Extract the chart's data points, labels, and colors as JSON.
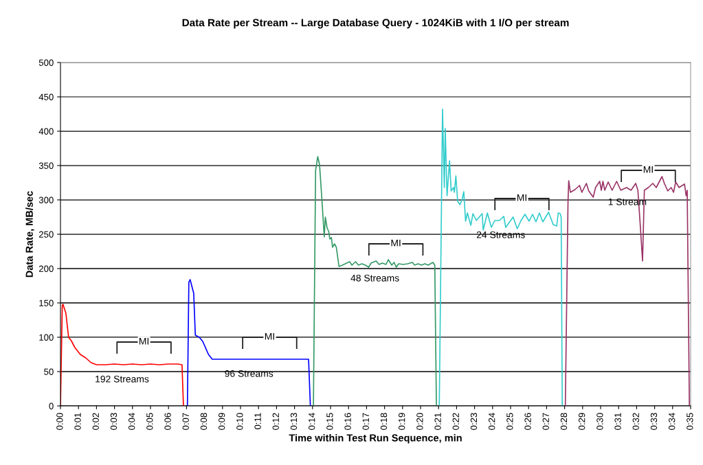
{
  "chart_data": {
    "type": "line",
    "title": "Data Rate per Stream -- Large Database Query - 1024KiB with 1 I/O per stream",
    "xlabel": "Time within Test Run Sequence, min",
    "ylabel": "Data Rate, MB/sec",
    "xlim": [
      0,
      35
    ],
    "ylim": [
      0,
      500
    ],
    "yticks": [
      0,
      50,
      100,
      150,
      200,
      250,
      300,
      350,
      400,
      450,
      500
    ],
    "xticks": [
      {
        "value": 0,
        "label": "0:00"
      },
      {
        "value": 1,
        "label": "0:01"
      },
      {
        "value": 2,
        "label": "0:02"
      },
      {
        "value": 3,
        "label": "0:03"
      },
      {
        "value": 4,
        "label": "0:04"
      },
      {
        "value": 5,
        "label": "0:05"
      },
      {
        "value": 6,
        "label": "0:06"
      },
      {
        "value": 7,
        "label": "0:07"
      },
      {
        "value": 8,
        "label": "0:08"
      },
      {
        "value": 9,
        "label": "0:09"
      },
      {
        "value": 10,
        "label": "0:10"
      },
      {
        "value": 11,
        "label": "0:11"
      },
      {
        "value": 12,
        "label": "0:12"
      },
      {
        "value": 13,
        "label": "0:13"
      },
      {
        "value": 14,
        "label": "0:14"
      },
      {
        "value": 15,
        "label": "0:15"
      },
      {
        "value": 16,
        "label": "0:16"
      },
      {
        "value": 17,
        "label": "0:17"
      },
      {
        "value": 18,
        "label": "0:18"
      },
      {
        "value": 19,
        "label": "0:19"
      },
      {
        "value": 20,
        "label": "0:20"
      },
      {
        "value": 21,
        "label": "0:21"
      },
      {
        "value": 22,
        "label": "0:22"
      },
      {
        "value": 23,
        "label": "0:23"
      },
      {
        "value": 24,
        "label": "0:24"
      },
      {
        "value": 25,
        "label": "0:25"
      },
      {
        "value": 26,
        "label": "0:26"
      },
      {
        "value": 27,
        "label": "0:27"
      },
      {
        "value": 28,
        "label": "0:28"
      },
      {
        "value": 29,
        "label": "0:29"
      },
      {
        "value": 30,
        "label": "0:30"
      },
      {
        "value": 31,
        "label": "0:31"
      },
      {
        "value": 32,
        "label": "0:32"
      },
      {
        "value": 33,
        "label": "0:33"
      },
      {
        "value": 34,
        "label": "0:34"
      },
      {
        "value": 35,
        "label": "0:35"
      }
    ],
    "grid": "y",
    "legend": false,
    "marker": "none",
    "line_style": "solid",
    "series": [
      {
        "name": "192 Streams",
        "color": "#ff0000",
        "x": [
          0,
          0.1,
          0.14,
          0.3,
          0.45,
          0.6,
          0.8,
          1.1,
          1.4,
          1.7,
          2.0,
          2.5,
          3.0,
          3.5,
          4.0,
          4.5,
          5.0,
          5.5,
          6.0,
          6.5,
          6.75,
          6.83
        ],
        "values": [
          0,
          146,
          148,
          135,
          100,
          95,
          85,
          75,
          70,
          63,
          60,
          60,
          61,
          60,
          61,
          60,
          61,
          60,
          61,
          61,
          60,
          0
        ]
      },
      {
        "name": "96 Streams",
        "color": "#0000ff",
        "x": [
          7.05,
          7.13,
          7.2,
          7.4,
          7.49,
          7.71,
          7.9,
          8.22,
          8.43,
          9.0,
          10.0,
          11.0,
          12.0,
          13.0,
          13.78,
          13.88
        ],
        "values": [
          0,
          180,
          184,
          164,
          103,
          100,
          94,
          75,
          68,
          68,
          68,
          68,
          68,
          68,
          68,
          0
        ]
      },
      {
        "name": "48 Streams",
        "color": "#339966",
        "x": [
          14.05,
          14.17,
          14.29,
          14.39,
          14.52,
          14.65,
          14.71,
          14.81,
          14.9,
          14.96,
          15.05,
          15.11,
          15.22,
          15.32,
          15.47,
          15.66,
          16.06,
          16.19,
          16.39,
          16.55,
          16.74,
          16.93,
          17.12,
          17.25,
          17.53,
          17.69,
          17.88,
          18.08,
          18.21,
          18.4,
          18.53,
          18.65,
          18.78,
          19.03,
          19.29,
          19.54,
          19.67,
          19.86,
          20.05,
          20.24,
          20.42,
          20.69,
          20.79,
          20.88
        ],
        "values": [
          0,
          343,
          363,
          351,
          301,
          246,
          275,
          259,
          254,
          243,
          245,
          231,
          236,
          231,
          203,
          205,
          210,
          205,
          210,
          205,
          207,
          205,
          202,
          208,
          211,
          206,
          208,
          206,
          213,
          205,
          209,
          202,
          207,
          206,
          207,
          209,
          205,
          207,
          205,
          207,
          205,
          209,
          205,
          0
        ]
      },
      {
        "name": "24 Streams",
        "color": "#33cccc",
        "x": [
          21.04,
          21.22,
          21.32,
          21.37,
          21.47,
          21.61,
          21.7,
          21.83,
          21.88,
          21.96,
          22.06,
          22.19,
          22.31,
          22.4,
          22.5,
          22.6,
          22.79,
          22.91,
          23.1,
          23.42,
          23.48,
          23.71,
          23.93,
          24.12,
          24.38,
          24.62,
          24.73,
          24.95,
          25.14,
          25.37,
          25.58,
          25.8,
          26.03,
          26.22,
          26.41,
          26.6,
          26.79,
          27.11,
          27.37,
          27.56,
          27.65,
          27.75,
          27.81,
          27.87
        ],
        "values": [
          0,
          432,
          318,
          404,
          306,
          357,
          313,
          318,
          311,
          335,
          298,
          293,
          301,
          312,
          269,
          281,
          263,
          280,
          270,
          280,
          256,
          281,
          260,
          270,
          270,
          276,
          260,
          268,
          275,
          258,
          270,
          279,
          269,
          279,
          268,
          281,
          268,
          282,
          264,
          262,
          281,
          280,
          275,
          0
        ]
      },
      {
        "name": "1 Stream",
        "color": "#993366",
        "x": [
          28.04,
          28.19,
          28.23,
          28.32,
          28.58,
          28.83,
          28.96,
          29.21,
          29.34,
          29.59,
          29.72,
          29.95,
          30.04,
          30.13,
          30.23,
          30.42,
          30.64,
          30.89,
          31.12,
          31.44,
          31.69,
          31.95,
          32.07,
          32.2,
          32.33,
          32.43,
          32.65,
          32.9,
          33.09,
          33.41,
          33.54,
          33.73,
          33.92,
          34.05,
          34.17,
          34.36,
          34.66,
          34.75,
          34.81,
          34.93
        ],
        "values": [
          0,
          298,
          328,
          311,
          315,
          321,
          311,
          324,
          313,
          304,
          318,
          327,
          314,
          327,
          314,
          326,
          314,
          327,
          314,
          318,
          314,
          324,
          314,
          264,
          211,
          314,
          318,
          324,
          318,
          334,
          324,
          313,
          318,
          311,
          326,
          318,
          323,
          306,
          314,
          0
        ]
      }
    ],
    "annotations": [
      {
        "text": "MI",
        "x": 4.64,
        "y": 93
      },
      {
        "text": "MI",
        "x": 11.62,
        "y": 100
      },
      {
        "text": "MI",
        "x": 18.63,
        "y": 236
      },
      {
        "text": "MI",
        "x": 25.63,
        "y": 302
      },
      {
        "text": "MI",
        "x": 32.65,
        "y": 343
      }
    ]
  }
}
